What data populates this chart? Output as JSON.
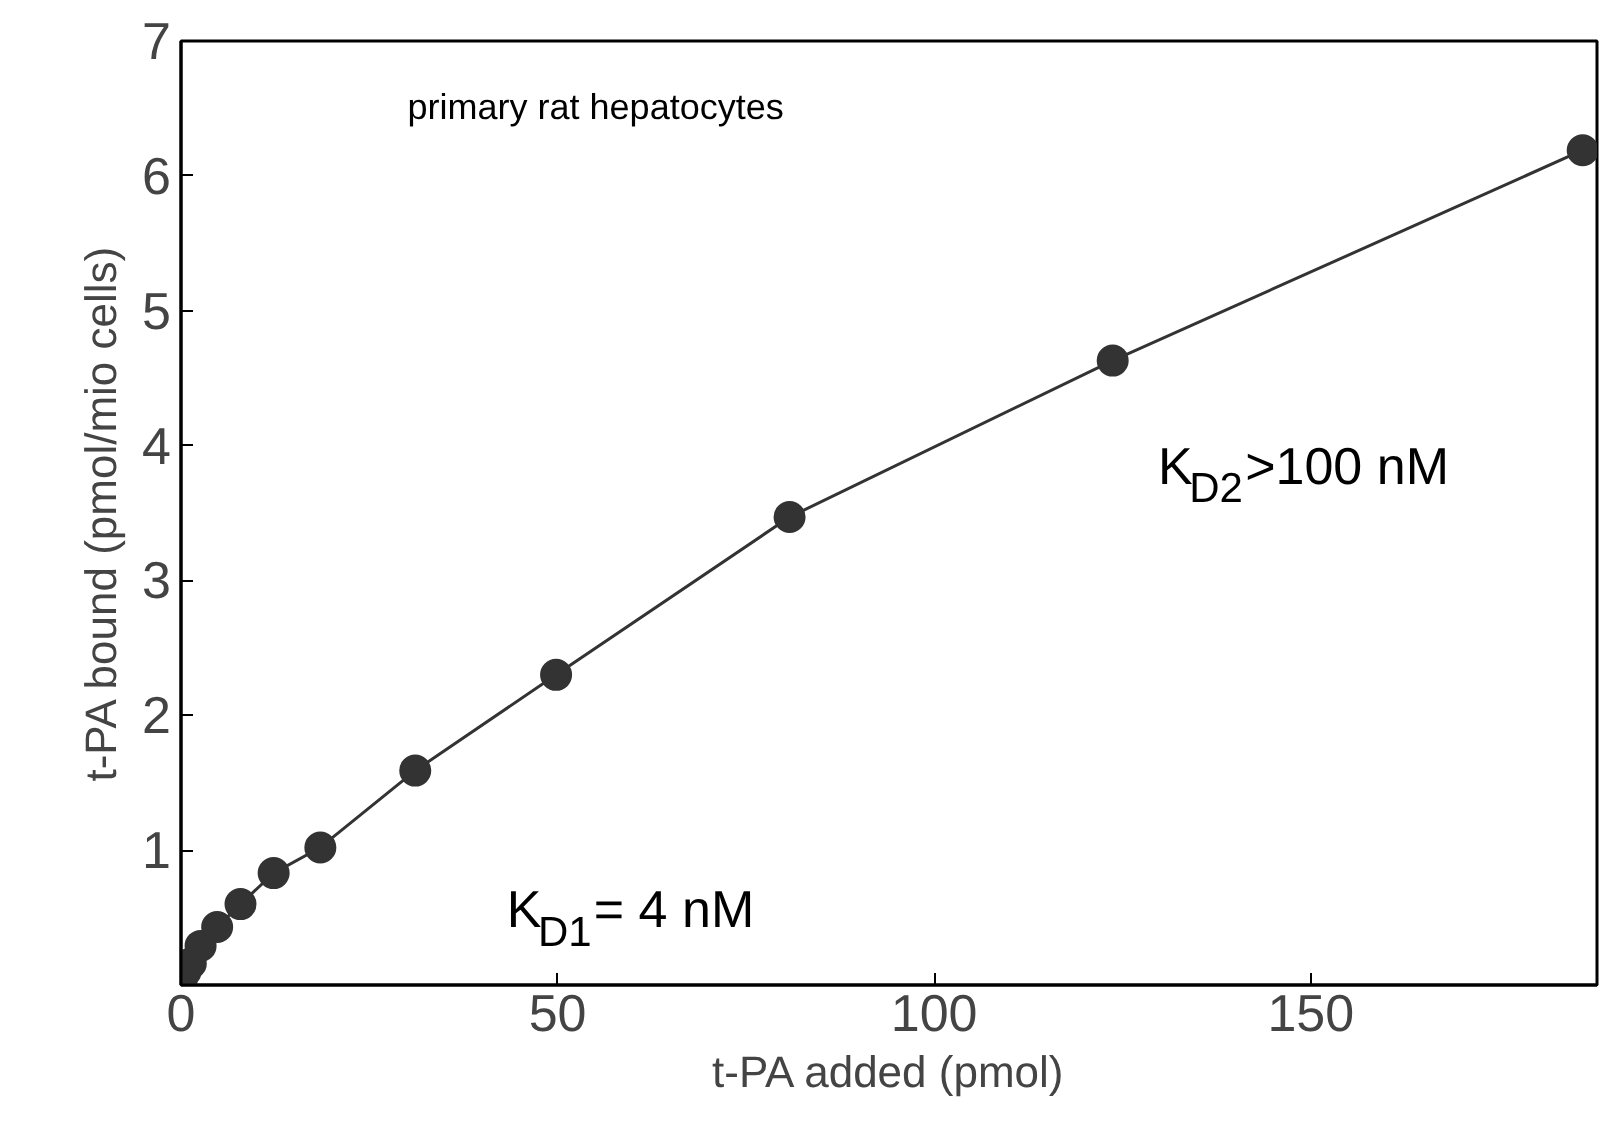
{
  "chart_data": {
    "type": "line",
    "xlabel": "t-PA added (pmol)",
    "ylabel": "t-PA bound (pmol/mio cells)",
    "annotations": [
      "primary rat hepatocytes",
      "K$_{D1}$= 4 nM",
      "K$_{D2}$>100 nM"
    ],
    "x": [
      0.1,
      0.6,
      1.3,
      2.6,
      4.8,
      7.9,
      12.3,
      18.5,
      31.1,
      49.8,
      80.8,
      123.7,
      186.1
    ],
    "series": [
      {
        "color": "#333333",
        "values": [
          0.04,
          0.1,
          0.16,
          0.29,
          0.43,
          0.6,
          0.83,
          1.02,
          1.59,
          2.3,
          3.47,
          4.63,
          6.19
        ]
      }
    ],
    "xlim": [
      0,
      188
    ],
    "ylim": [
      0,
      7
    ],
    "xticks": [
      0,
      50,
      100,
      150
    ],
    "yticks": [
      1,
      2,
      3,
      4,
      5,
      6,
      7
    ],
    "marker": "circle",
    "line_style": "solid",
    "grid": false
  }
}
